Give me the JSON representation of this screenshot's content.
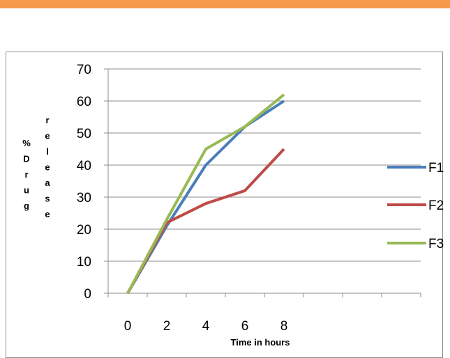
{
  "chart_data": {
    "type": "line",
    "title": "",
    "xlabel": "Time in  hours",
    "ylabel": "% Drug release",
    "ylabel_columns": [
      [
        "%",
        "D",
        "r",
        "u",
        "g"
      ],
      [
        "r",
        "e",
        "l",
        "e",
        "a",
        "s",
        "e"
      ]
    ],
    "x": [
      0,
      2,
      4,
      6,
      8
    ],
    "x_ticks": [
      "0",
      "2",
      "4",
      "6",
      "8"
    ],
    "y_ticks": [
      "0",
      "10",
      "20",
      "30",
      "40",
      "50",
      "60",
      "70"
    ],
    "ylim": [
      0,
      70
    ],
    "grid": "horizontal",
    "legend": "right",
    "series": [
      {
        "name": "F1",
        "color": "#4a7ebb",
        "values": [
          0,
          21,
          40,
          52,
          60
        ]
      },
      {
        "name": "F2",
        "color": "#be4b48",
        "values": [
          0,
          22,
          28,
          32,
          45
        ]
      },
      {
        "name": "F3",
        "color": "#98b954",
        "values": [
          0,
          23,
          45,
          52,
          62
        ]
      }
    ]
  }
}
